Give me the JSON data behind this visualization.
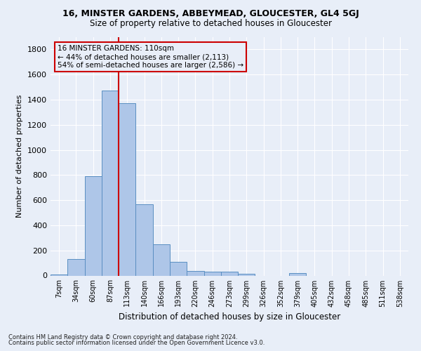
{
  "title1": "16, MINSTER GARDENS, ABBEYMEAD, GLOUCESTER, GL4 5GJ",
  "title2": "Size of property relative to detached houses in Gloucester",
  "xlabel": "Distribution of detached houses by size in Gloucester",
  "ylabel": "Number of detached properties",
  "footnote1": "Contains HM Land Registry data © Crown copyright and database right 2024.",
  "footnote2": "Contains public sector information licensed under the Open Government Licence v3.0.",
  "bar_labels": [
    "7sqm",
    "34sqm",
    "60sqm",
    "87sqm",
    "113sqm",
    "140sqm",
    "166sqm",
    "193sqm",
    "220sqm",
    "246sqm",
    "273sqm",
    "299sqm",
    "326sqm",
    "352sqm",
    "379sqm",
    "405sqm",
    "432sqm",
    "458sqm",
    "485sqm",
    "511sqm",
    "538sqm"
  ],
  "bar_values": [
    10,
    130,
    790,
    1475,
    1370,
    565,
    250,
    110,
    35,
    30,
    30,
    15,
    0,
    0,
    20,
    0,
    0,
    0,
    0,
    0,
    0
  ],
  "bar_color": "#aec6e8",
  "bar_edge_color": "#5a8fc2",
  "bg_color": "#e8eef8",
  "grid_color": "#ffffff",
  "vline_color": "#cc0000",
  "annotation_text": "16 MINSTER GARDENS: 110sqm\n← 44% of detached houses are smaller (2,113)\n54% of semi-detached houses are larger (2,586) →",
  "annotation_box_color": "#cc0000",
  "ylim": [
    0,
    1900
  ],
  "yticks": [
    0,
    200,
    400,
    600,
    800,
    1000,
    1200,
    1400,
    1600,
    1800
  ]
}
